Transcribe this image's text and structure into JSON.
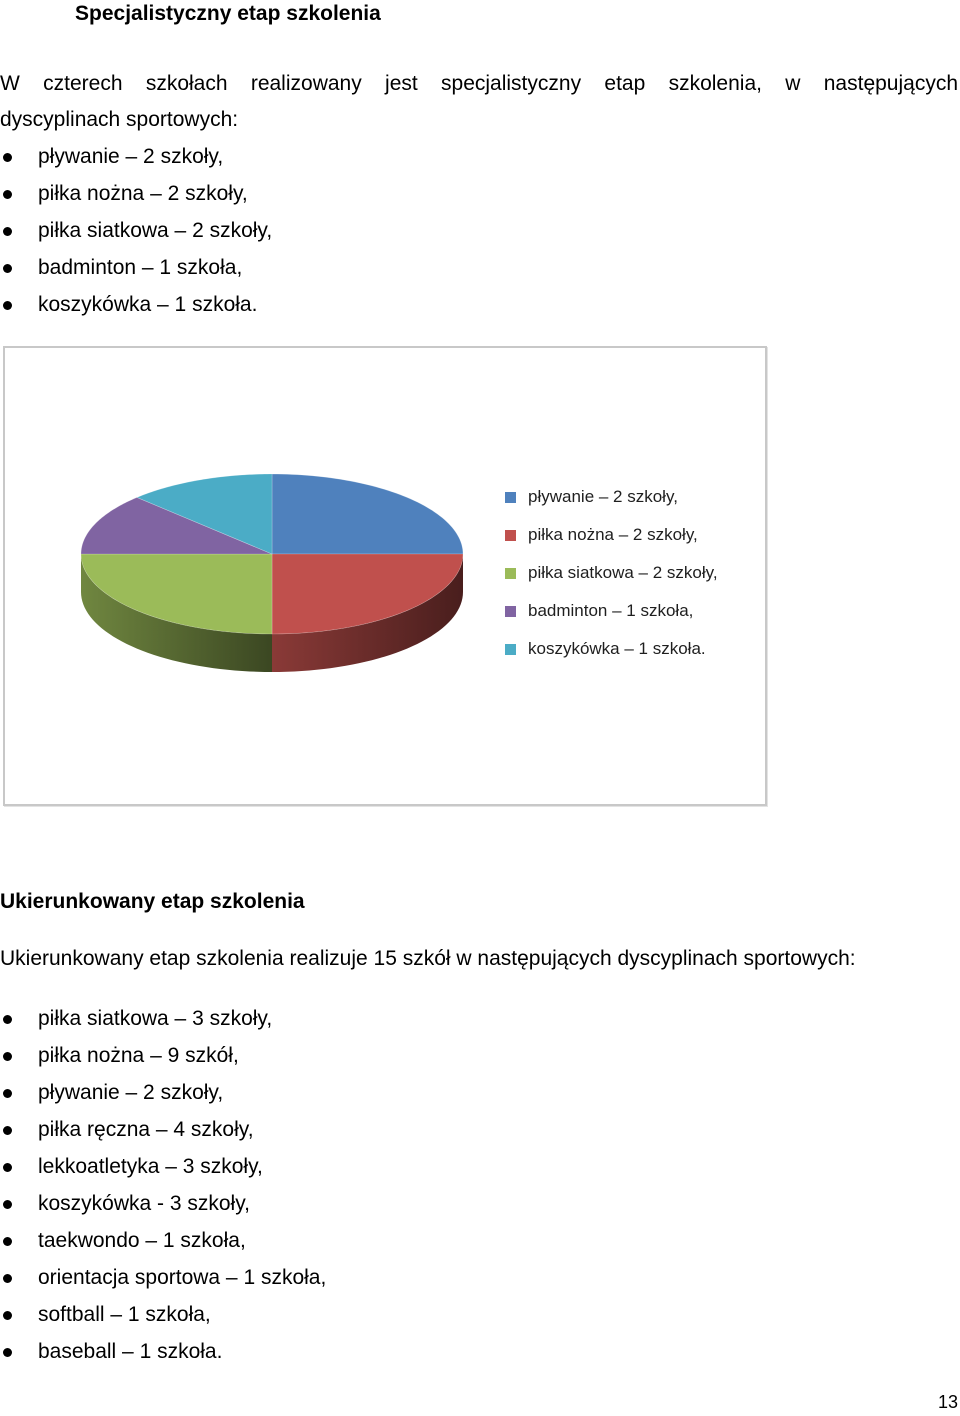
{
  "section1": {
    "heading": "Specjalistyczny etap szkolenia",
    "paragraph_line1": "W czterech szkołach realizowany jest specjalistyczny etap szkolenia, w następujących",
    "paragraph_line2": "dyscyplinach sportowych:",
    "items": [
      "pływanie – 2 szkoły,",
      "piłka nożna – 2 szkoły,",
      "piłka siatkowa – 2 szkoły,",
      "badminton – 1 szkoła,",
      "koszykówka – 1 szkoła."
    ]
  },
  "chart_data": {
    "type": "pie",
    "style": "3d",
    "categories": [
      "pływanie – 2 szkoły,",
      "piłka nożna – 2 szkoły,",
      "piłka siatkowa – 2 szkoły,",
      "badminton – 1 szkoła,",
      "koszykówka – 1 szkoła."
    ],
    "values": [
      2,
      2,
      2,
      1,
      1
    ],
    "colors": [
      "#4f81bd",
      "#c0504d",
      "#9bbb59",
      "#8064a2",
      "#4bacc6"
    ],
    "legend_position": "right"
  },
  "section2": {
    "heading": "Ukierunkowany etap szkolenia",
    "paragraph": "Ukierunkowany etap szkolenia realizuje 15 szkół w następujących dyscyplinach sportowych:",
    "items": [
      "piłka siatkowa – 3 szkoły,",
      "piłka nożna –  9 szkół,",
      "pływanie –  2 szkoły,",
      "piłka ręczna – 4 szkoły,",
      "lekkoatletyka –  3 szkoły,",
      "koszykówka -  3 szkoły,",
      "taekwondo – 1 szkoła,",
      "orientacja sportowa – 1 szkoła,",
      "softball – 1 szkoła,",
      "baseball – 1 szkoła."
    ]
  },
  "page_number": "13"
}
